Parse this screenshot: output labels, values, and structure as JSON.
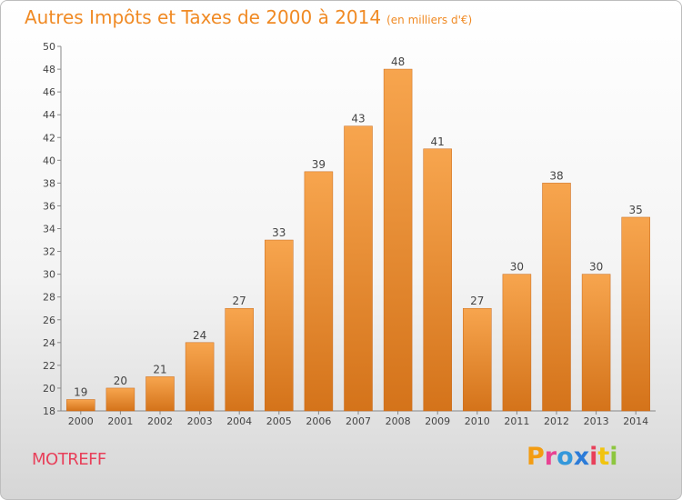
{
  "header": {
    "title": "Autres Impôts et Taxes de 2000 à 2014",
    "subtitle": "(en milliers d'€)"
  },
  "commune": "MOTREFF",
  "logo": {
    "letters": [
      "P",
      "r",
      "o",
      "x",
      "i",
      "t",
      "i"
    ],
    "colors": [
      "#f39c12",
      "#e84393",
      "#3498db",
      "#2b7bd8",
      "#e8405a",
      "#f1c40f",
      "#8dc63f"
    ]
  },
  "colors": {
    "title": "#f08a24",
    "bar_light": "#f7a54e",
    "bar_dark": "#d4731a",
    "commune": "#e8405a"
  },
  "chart_data": {
    "type": "bar",
    "title": "Autres Impôts et Taxes de 2000 à 2014",
    "subtitle": "(en milliers d'€)",
    "xlabel": "",
    "ylabel": "",
    "categories": [
      "2000",
      "2001",
      "2002",
      "2003",
      "2004",
      "2005",
      "2006",
      "2007",
      "2008",
      "2009",
      "2010",
      "2011",
      "2012",
      "2013",
      "2014"
    ],
    "values": [
      19,
      20,
      21,
      24,
      27,
      33,
      39,
      43,
      48,
      41,
      27,
      30,
      38,
      30,
      35
    ],
    "ylim": [
      18,
      50
    ],
    "yticks": [
      18,
      20,
      22,
      24,
      26,
      28,
      30,
      32,
      34,
      36,
      38,
      40,
      42,
      44,
      46,
      48,
      50
    ],
    "grid": false,
    "legend": "none"
  }
}
